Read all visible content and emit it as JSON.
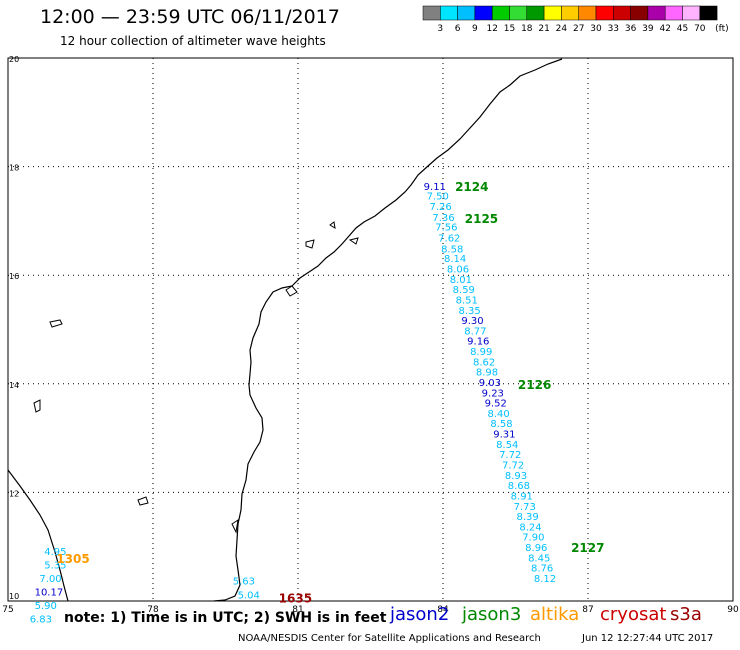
{
  "title": "12:00 — 23:59 UTC 06/11/2017",
  "subtitle": "12 hour collection of altimeter wave heights",
  "note": "note: 1) Time is in UTC; 2) SWH is in feet",
  "credit": "NOAA/NESDIS Center for Satellite Applications and Research",
  "generated": "Jun 12 12:27:44 UTC 2017",
  "satellites": [
    {
      "name": "jason2",
      "color": "#0000cc"
    },
    {
      "name": "jason3",
      "color": "#008800"
    },
    {
      "name": "altika",
      "color": "#ff9900"
    },
    {
      "name": "cryosat",
      "color": "#cc0000"
    },
    {
      "name": "s3a",
      "color": "#990000"
    }
  ],
  "color_scale": {
    "unit": "(ft)",
    "labels": [
      "3",
      "6",
      "9",
      "12",
      "15",
      "18",
      "21",
      "24",
      "27",
      "30",
      "33",
      "36",
      "39",
      "42",
      "45",
      "70"
    ],
    "colors": [
      "#808080",
      "#00e5ff",
      "#00bfff",
      "#0000ff",
      "#00cc00",
      "#33dd33",
      "#009900",
      "#ffff00",
      "#ffcc00",
      "#ff8800",
      "#ff0000",
      "#cc0000",
      "#880000",
      "#aa00aa",
      "#ff66ff",
      "#ffb3ff",
      "#000000"
    ]
  },
  "axes": {
    "x_ticks": [
      "75",
      "78",
      "81",
      "84",
      "87",
      "90"
    ],
    "y_ticks": [
      "20",
      "18",
      "16",
      "14",
      "12",
      "10"
    ],
    "lon_range": [
      75,
      90
    ],
    "lat_range": [
      10,
      20
    ]
  },
  "pass_labels": [
    {
      "text": "2124",
      "lon": 84.25,
      "lat": 17.55,
      "color": "#008800"
    },
    {
      "text": "2125",
      "lon": 84.45,
      "lat": 16.96,
      "color": "#008800"
    },
    {
      "text": "2126",
      "lon": 85.55,
      "lat": 13.9,
      "color": "#008800"
    },
    {
      "text": "2127",
      "lon": 86.65,
      "lat": 10.9,
      "color": "#008800"
    },
    {
      "text": "1305",
      "lon": 76.0,
      "lat": 10.7,
      "color": "#ff9900"
    },
    {
      "text": "1635",
      "lon": 80.6,
      "lat": 9.97,
      "color": "#990000"
    }
  ],
  "readings": [
    {
      "text": "9.11",
      "lon": 83.6,
      "lat": 17.57,
      "color": "#0000cc"
    },
    {
      "text": "7.50",
      "lon": 83.66,
      "lat": 17.39,
      "color": "#00bfff"
    },
    {
      "text": "7.26",
      "lon": 83.72,
      "lat": 17.2,
      "color": "#00bfff"
    },
    {
      "text": "7.36",
      "lon": 83.78,
      "lat": 17.0,
      "color": "#00bfff"
    },
    {
      "text": "7.56",
      "lon": 83.84,
      "lat": 16.82,
      "color": "#00bfff"
    },
    {
      "text": "7.62",
      "lon": 83.9,
      "lat": 16.62,
      "color": "#00bfff"
    },
    {
      "text": "8.58",
      "lon": 83.96,
      "lat": 16.42,
      "color": "#00bfff"
    },
    {
      "text": "8.14",
      "lon": 84.02,
      "lat": 16.24,
      "color": "#00bfff"
    },
    {
      "text": "8.06",
      "lon": 84.08,
      "lat": 16.05,
      "color": "#00bfff"
    },
    {
      "text": "8.01",
      "lon": 84.14,
      "lat": 15.86,
      "color": "#00bfff"
    },
    {
      "text": "8.59",
      "lon": 84.2,
      "lat": 15.67,
      "color": "#00bfff"
    },
    {
      "text": "8.51",
      "lon": 84.26,
      "lat": 15.48,
      "color": "#00bfff"
    },
    {
      "text": "8.35",
      "lon": 84.32,
      "lat": 15.29,
      "color": "#00bfff"
    },
    {
      "text": "9.30",
      "lon": 84.38,
      "lat": 15.1,
      "color": "#0000cc"
    },
    {
      "text": "8.77",
      "lon": 84.44,
      "lat": 14.91,
      "color": "#00bfff"
    },
    {
      "text": "9.16",
      "lon": 84.5,
      "lat": 14.72,
      "color": "#0000cc"
    },
    {
      "text": "8.99",
      "lon": 84.56,
      "lat": 14.53,
      "color": "#00bfff"
    },
    {
      "text": "8.62",
      "lon": 84.62,
      "lat": 14.34,
      "color": "#00bfff"
    },
    {
      "text": "8.98",
      "lon": 84.68,
      "lat": 14.15,
      "color": "#00bfff"
    },
    {
      "text": "9.03",
      "lon": 84.74,
      "lat": 13.96,
      "color": "#0000cc"
    },
    {
      "text": "9.23",
      "lon": 84.8,
      "lat": 13.77,
      "color": "#0000cc"
    },
    {
      "text": "9.52",
      "lon": 84.86,
      "lat": 13.58,
      "color": "#0000cc"
    },
    {
      "text": "8.40",
      "lon": 84.92,
      "lat": 13.39,
      "color": "#00bfff"
    },
    {
      "text": "8.58",
      "lon": 84.98,
      "lat": 13.2,
      "color": "#00bfff"
    },
    {
      "text": "9.31",
      "lon": 85.04,
      "lat": 13.01,
      "color": "#0000cc"
    },
    {
      "text": "8.54",
      "lon": 85.1,
      "lat": 12.82,
      "color": "#00bfff"
    },
    {
      "text": "7.72",
      "lon": 85.16,
      "lat": 12.63,
      "color": "#00bfff"
    },
    {
      "text": "7.72",
      "lon": 85.22,
      "lat": 12.44,
      "color": "#00bfff"
    },
    {
      "text": "8.93",
      "lon": 85.28,
      "lat": 12.25,
      "color": "#00bfff"
    },
    {
      "text": "8.68",
      "lon": 85.34,
      "lat": 12.06,
      "color": "#00bfff"
    },
    {
      "text": "8.91",
      "lon": 85.4,
      "lat": 11.87,
      "color": "#00bfff"
    },
    {
      "text": "7.73",
      "lon": 85.46,
      "lat": 11.68,
      "color": "#00bfff"
    },
    {
      "text": "8.39",
      "lon": 85.52,
      "lat": 11.49,
      "color": "#00bfff"
    },
    {
      "text": "8.24",
      "lon": 85.58,
      "lat": 11.3,
      "color": "#00bfff"
    },
    {
      "text": "7.90",
      "lon": 85.64,
      "lat": 11.11,
      "color": "#00bfff"
    },
    {
      "text": "8.96",
      "lon": 85.7,
      "lat": 10.92,
      "color": "#00bfff"
    },
    {
      "text": "8.45",
      "lon": 85.76,
      "lat": 10.73,
      "color": "#00bfff"
    },
    {
      "text": "8.76",
      "lon": 85.82,
      "lat": 10.54,
      "color": "#00bfff"
    },
    {
      "text": "8.12",
      "lon": 85.88,
      "lat": 10.35,
      "color": "#00bfff"
    },
    {
      "text": "4.95",
      "lon": 75.75,
      "lat": 10.85,
      "color": "#00bfff"
    },
    {
      "text": "5.35",
      "lon": 75.75,
      "lat": 10.6,
      "color": "#00bfff"
    },
    {
      "text": "7.00",
      "lon": 75.65,
      "lat": 10.35,
      "color": "#00bfff"
    },
    {
      "text": "10.17",
      "lon": 75.55,
      "lat": 10.1,
      "color": "#0000cc"
    },
    {
      "text": "5.90",
      "lon": 75.55,
      "lat": 9.85,
      "color": "#00bfff"
    },
    {
      "text": "6.83",
      "lon": 75.45,
      "lat": 9.6,
      "color": "#00bfff"
    },
    {
      "text": "5.63",
      "lon": 79.65,
      "lat": 10.3,
      "color": "#00bfff"
    },
    {
      "text": "5.04",
      "lon": 79.75,
      "lat": 10.05,
      "color": "#00bfff"
    }
  ]
}
